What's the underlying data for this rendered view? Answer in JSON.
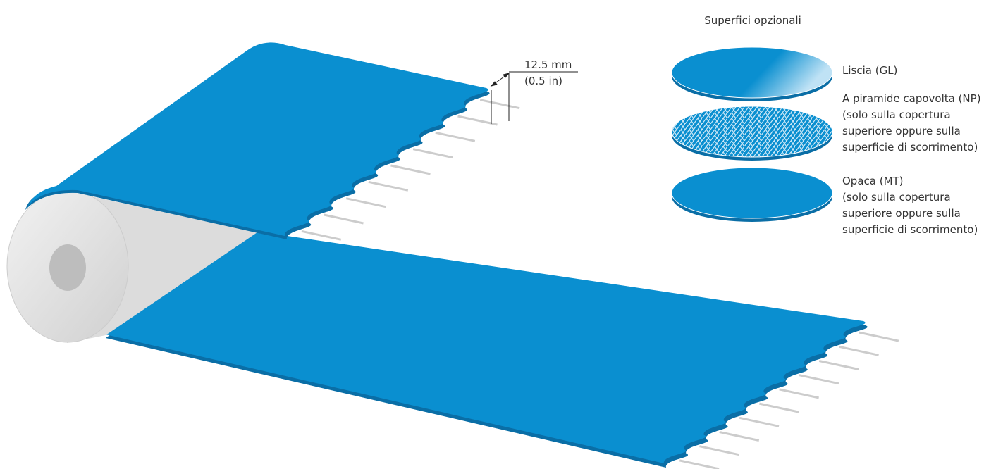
{
  "dimension": {
    "metric": "12.5 mm",
    "imperial": "(0.5 in)"
  },
  "surfaces": {
    "title": "Superfici opzionali",
    "items": [
      {
        "lines": [
          "Liscia (GL)"
        ]
      },
      {
        "lines": [
          "A piramide capovolta (NP)",
          "(solo sulla copertura",
          "superiore oppure sulla",
          "superficie di scorrimento)"
        ]
      },
      {
        "lines": [
          "Opaca (MT)",
          "(solo sulla copertura",
          "superiore oppure sulla",
          "superficie di scorrimento)"
        ]
      }
    ]
  }
}
